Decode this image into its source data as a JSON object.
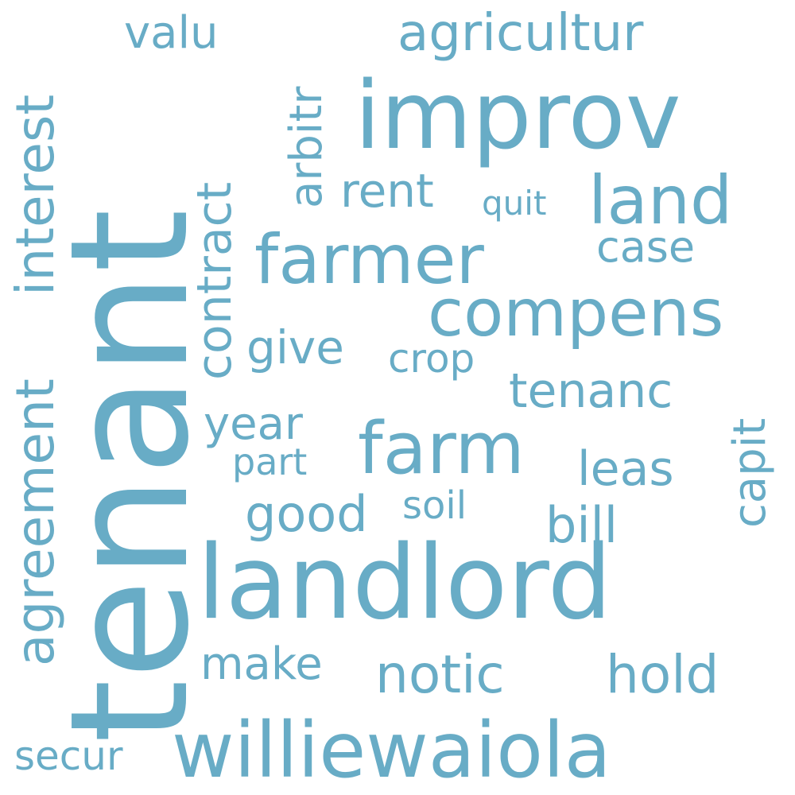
{
  "color": "#68acc6",
  "words": {
    "tenant": "tenant",
    "landlord": "landlord",
    "improv": "improv",
    "williewaiola": "williewaiola",
    "farm": "farm",
    "farmer": "farmer",
    "compens": "compens",
    "land": "land",
    "agricultur": "agricultur",
    "agreement": "agreement",
    "interest": "interest",
    "contract": "contract",
    "arbitr": "arbitr",
    "valu": "valu",
    "rent": "rent",
    "quit": "quit",
    "case": "case",
    "give": "give",
    "crop": "crop",
    "tenanc": "tenanc",
    "capit": "capit",
    "year": "year",
    "part": "part",
    "leas": "leas",
    "good": "good",
    "soil": "soil",
    "bill": "bill",
    "make": "make",
    "notic": "notic",
    "hold": "hold",
    "secur": "secur"
  }
}
